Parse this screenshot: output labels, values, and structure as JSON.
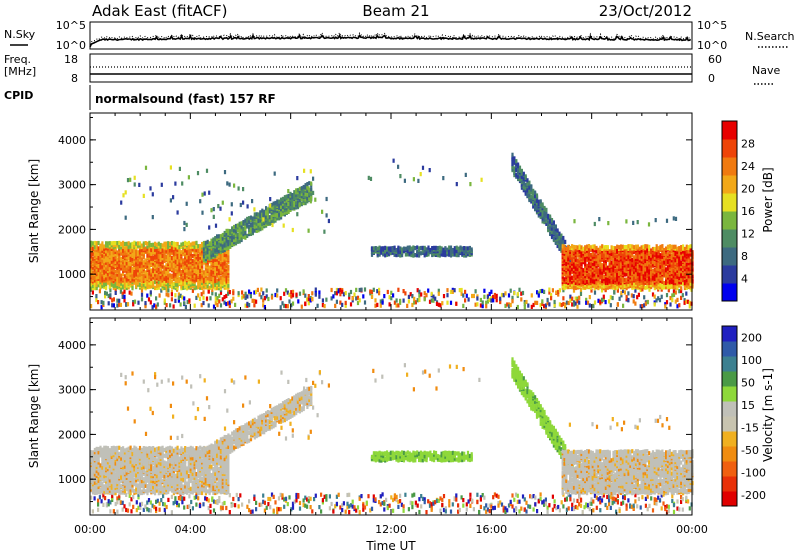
{
  "header": {
    "title": "Adak East (fitACF)",
    "beam": "Beam 21",
    "date": "23/Oct/2012"
  },
  "top_panels": {
    "nsky_label": "N.Sky",
    "nsearch_label": "N.Search",
    "nsky_ticks": [
      "10^5",
      "10^0"
    ],
    "nsearch_ticks": [
      "10^5",
      "10^0"
    ],
    "freq_label": "Freq.",
    "freq_unit": "[MHz]",
    "freq_ticks": [
      "18",
      "8"
    ],
    "nave_label": "Nave",
    "nave_ticks": [
      "60",
      "0"
    ],
    "cpid_label": "CPID",
    "cpid_text": "normalsound (fast) 157 RF"
  },
  "colors": {
    "power_scale": [
      "#0000ee",
      "#2b3b9e",
      "#3d6a80",
      "#4e8c63",
      "#7ab63e",
      "#e6e022",
      "#f2a818",
      "#f07a10",
      "#ee4408",
      "#e80000"
    ],
    "velocity_scale": [
      "#2020c0",
      "#2f5aa8",
      "#3c8090",
      "#4a9a46",
      "#8ed83a",
      "#c0c0b8",
      "#c8c4b0",
      "#f0b020",
      "#f08c10",
      "#f06010",
      "#e83008",
      "#e00000"
    ]
  },
  "chart_data": [
    {
      "type": "heatmap",
      "title": "",
      "quantity": "Power",
      "xlabel": "",
      "ylabel": "Slant Range [km]",
      "ylim": [
        200,
        4600
      ],
      "xlim": [
        "00:00",
        "24:00"
      ],
      "y_ticks": [
        "1000",
        "2000",
        "3000",
        "4000"
      ],
      "colorbar": {
        "label": "Power [dB]",
        "ticks": [
          "4",
          "8",
          "12",
          "16",
          "20",
          "24",
          "28"
        ],
        "range": [
          0,
          32
        ]
      },
      "features": [
        {
          "name": "near-range E-region band",
          "start_ut": 0.0,
          "end_ut": 5.5,
          "range_km": [
            700,
            1700
          ],
          "power_db": 26
        },
        {
          "name": "ascending echo",
          "start_ut": 4.5,
          "end_ut": 8.8,
          "range_km_start": 1500,
          "range_km_end": 2900,
          "power_db": 10
        },
        {
          "name": "mid-range echo",
          "start_ut": 11.2,
          "end_ut": 15.2,
          "range_km": [
            1430,
            1620
          ],
          "power_db": 8
        },
        {
          "name": "descending echo",
          "start_ut": 16.8,
          "end_ut": 19.2,
          "range_km_start": 3500,
          "range_km_end": 1300,
          "power_db": 8
        },
        {
          "name": "evening band",
          "start_ut": 18.8,
          "end_ut": 24.0,
          "range_km": [
            700,
            1650
          ],
          "power_db": 28
        }
      ]
    },
    {
      "type": "heatmap",
      "title": "",
      "quantity": "Velocity",
      "xlabel": "Time UT",
      "ylabel": "Slant Range [km]",
      "ylim": [
        200,
        4600
      ],
      "xlim": [
        "00:00",
        "24:00"
      ],
      "x_ticks": [
        "00:00",
        "04:00",
        "08:00",
        "12:00",
        "16:00",
        "20:00",
        "00:00"
      ],
      "y_ticks": [
        "1000",
        "2000",
        "3000",
        "4000"
      ],
      "colorbar": {
        "label": "Velocity [m s-1]",
        "ticks": [
          "200",
          "100",
          "50",
          "15",
          "-15",
          "-50",
          "-100",
          "-200"
        ],
        "range": [
          -250,
          250
        ]
      },
      "features": [
        {
          "name": "near-range band",
          "start_ut": 0.0,
          "end_ut": 5.5,
          "range_km": [
            700,
            1700
          ],
          "velocity_ms": 0
        },
        {
          "name": "ascending echo",
          "start_ut": 4.5,
          "end_ut": 8.8,
          "range_km_start": 1500,
          "range_km_end": 2900,
          "velocity_ms": 0
        },
        {
          "name": "mid-range echo",
          "start_ut": 11.2,
          "end_ut": 15.2,
          "range_km": [
            1430,
            1620
          ],
          "velocity_ms": 30
        },
        {
          "name": "descending echo",
          "start_ut": 16.8,
          "end_ut": 19.2,
          "range_km_start": 3500,
          "range_km_end": 1300,
          "velocity_ms": 40
        },
        {
          "name": "evening band",
          "start_ut": 18.8,
          "end_ut": 24.0,
          "range_km": [
            700,
            1650
          ],
          "velocity_ms": 0
        }
      ]
    }
  ]
}
